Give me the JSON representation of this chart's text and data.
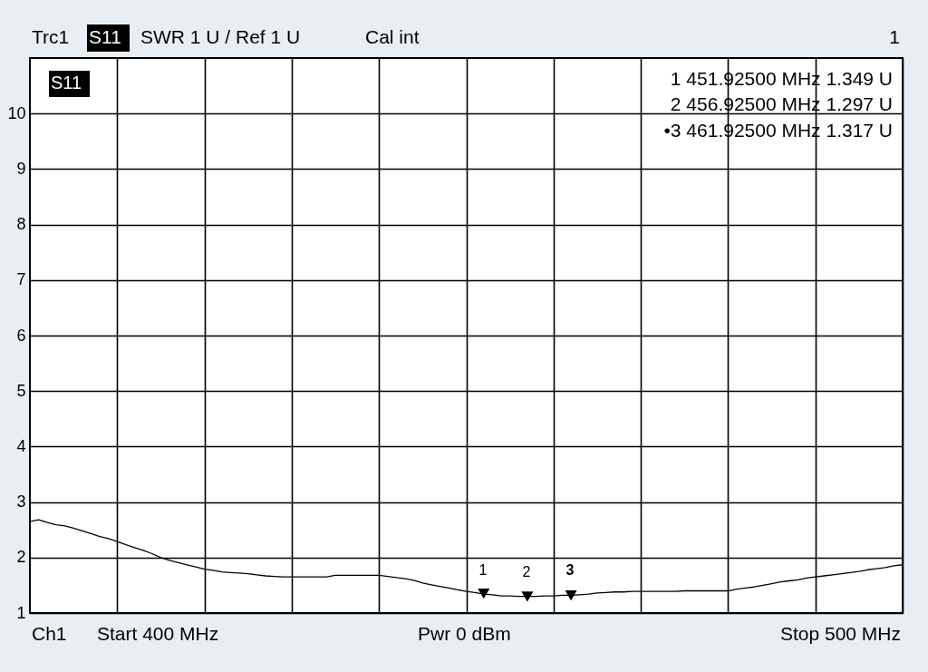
{
  "chart_data": {
    "type": "line",
    "title": "Trc1",
    "categories": [
      null,
      null,
      null,
      null,
      null,
      null,
      null,
      null,
      null,
      null,
      null,
      null,
      null,
      null,
      null,
      null,
      null,
      null,
      null,
      null,
      null,
      null,
      null,
      null,
      null,
      null,
      null,
      null,
      null,
      null,
      null,
      null,
      null,
      null,
      null,
      null,
      null,
      null,
      null,
      null,
      null,
      null,
      null,
      null,
      null,
      null,
      null,
      null,
      null,
      null,
      null,
      null,
      null,
      null,
      null,
      null,
      null,
      null,
      null,
      null,
      null,
      null,
      null,
      null,
      null,
      null,
      null,
      null,
      null,
      null,
      null,
      null,
      null,
      null,
      null,
      null,
      null,
      null,
      null,
      null,
      null,
      null,
      null,
      null,
      null,
      null,
      null,
      null,
      null,
      null,
      null,
      null,
      null,
      null,
      null,
      null,
      null,
      null,
      null,
      null,
      null
    ],
    "series": [
      {
        "color": "#000000",
        "values": [
          2.65,
          2.68,
          2.63,
          2.59,
          2.57,
          2.53,
          2.48,
          2.43,
          2.38,
          2.34,
          2.29,
          2.23,
          2.18,
          2.13,
          2.07,
          2.0,
          1.95,
          1.91,
          1.87,
          1.83,
          1.79,
          1.77,
          1.74,
          1.73,
          1.72,
          1.71,
          1.69,
          1.67,
          1.66,
          1.65,
          1.65,
          1.65,
          1.65,
          1.65,
          1.65,
          1.68,
          1.68,
          1.68,
          1.68,
          1.68,
          1.68,
          1.66,
          1.64,
          1.62,
          1.59,
          1.54,
          1.51,
          1.48,
          1.45,
          1.42,
          1.39,
          1.37,
          1.34,
          1.33,
          1.31,
          1.31,
          1.3,
          1.3,
          1.3,
          1.31,
          1.31,
          1.32,
          1.32,
          1.33,
          1.34,
          1.36,
          1.37,
          1.38,
          1.38,
          1.39,
          1.39,
          1.39,
          1.39,
          1.39,
          1.39,
          1.4,
          1.4,
          1.4,
          1.4,
          1.4,
          1.4,
          1.43,
          1.45,
          1.47,
          1.5,
          1.53,
          1.56,
          1.58,
          1.6,
          1.63,
          1.65,
          1.67,
          1.69,
          1.71,
          1.73,
          1.75,
          1.78,
          1.8,
          1.82,
          1.85,
          1.87
        ]
      },
      {
        "type": "scatter",
        "marker": "triangle",
        "color": "#000000",
        "values": [
          null,
          null,
          null,
          null,
          null,
          null,
          null,
          null,
          null,
          null,
          null,
          null,
          null,
          null,
          null,
          null,
          null,
          null,
          null,
          null,
          null,
          null,
          null,
          null,
          null,
          null,
          null,
          null,
          null,
          null,
          null,
          null,
          null,
          null,
          null,
          null,
          null,
          null,
          null,
          null,
          null,
          null,
          null,
          null,
          null,
          null,
          null,
          null,
          null,
          null,
          null,
          null,
          1.349,
          null,
          null,
          null,
          null,
          1.297,
          null,
          null,
          null,
          null,
          1.317,
          null,
          null,
          null,
          null,
          null,
          null,
          null,
          null,
          null,
          null,
          null,
          null,
          null,
          null,
          null,
          null,
          null,
          null,
          null,
          null,
          null,
          null,
          null,
          null,
          null,
          null,
          null,
          null,
          null,
          null,
          null,
          null,
          null,
          null,
          null,
          null,
          null,
          null
        ]
      }
    ],
    "ylim": [
      1,
      11
    ],
    "yticks": [
      1,
      2,
      3,
      4,
      5,
      6,
      7,
      8,
      9,
      10
    ],
    "grid": true,
    "tick_labels": "y",
    "annotations": [
      "S11",
      "SWR 1 U / Ref 1 U",
      "Cal int",
      "1",
      "S11",
      "1 451.92500 MHz 1.349 U",
      "2 456.92500 MHz 1.297 U",
      "•3 461.92500 MHz 1.317 U",
      "1",
      "2",
      "3",
      "Ch1",
      "Start 400 MHz",
      "Pwr 0 dBm",
      "Stop 500 MHz"
    ]
  }
}
